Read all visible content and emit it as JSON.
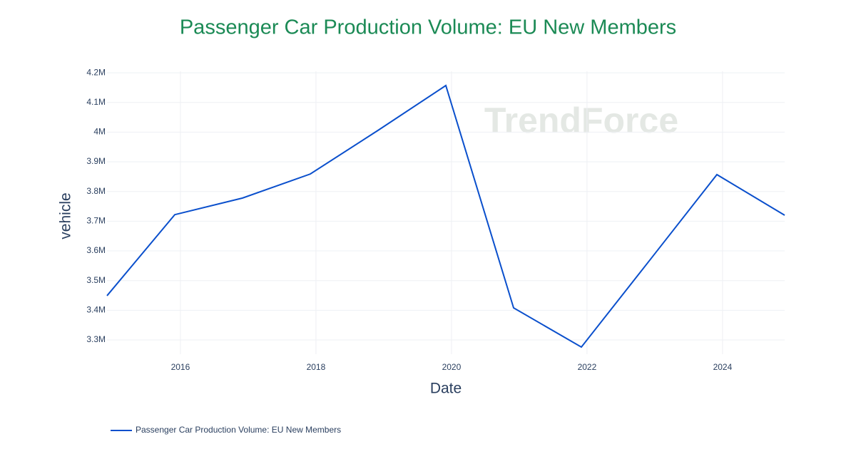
{
  "chart_data": {
    "type": "line",
    "title": "Passenger Car Production Volume: EU New Members",
    "title_color": "#1b8a55",
    "watermark": "TrendForce",
    "x_label": "Date",
    "y_label": "vehicle",
    "x": [
      "2014-12",
      "2015-12",
      "2016-12",
      "2017-12",
      "2018-12",
      "2019-12",
      "2020-12",
      "2021-12",
      "2022-12",
      "2023-12",
      "2024-12"
    ],
    "xlim": [
      "2014-12",
      "2024-12"
    ],
    "xticks": [
      2016,
      2018,
      2020,
      2022,
      2024
    ],
    "ylim": [
      3252000,
      4205000
    ],
    "yticks": [
      {
        "value": 3300000,
        "label": "3.3M"
      },
      {
        "value": 3400000,
        "label": "3.4M"
      },
      {
        "value": 3500000,
        "label": "3.5M"
      },
      {
        "value": 3600000,
        "label": "3.6M"
      },
      {
        "value": 3700000,
        "label": "3.7M"
      },
      {
        "value": 3800000,
        "label": "3.8M"
      },
      {
        "value": 3900000,
        "label": "3.9M"
      },
      {
        "value": 4000000,
        "label": "4M"
      },
      {
        "value": 4100000,
        "label": "4.1M"
      },
      {
        "value": 4200000,
        "label": "4.2M"
      }
    ],
    "grid": true,
    "legend": "bottom-left",
    "series": [
      {
        "name": "Passenger Car Production Volume: EU New Members",
        "color": "#0a4fcc",
        "values": [
          3449000,
          3722000,
          3778000,
          3859000,
          4006000,
          4157000,
          3408000,
          3276000,
          3566000,
          3857000,
          3720000
        ]
      }
    ]
  }
}
